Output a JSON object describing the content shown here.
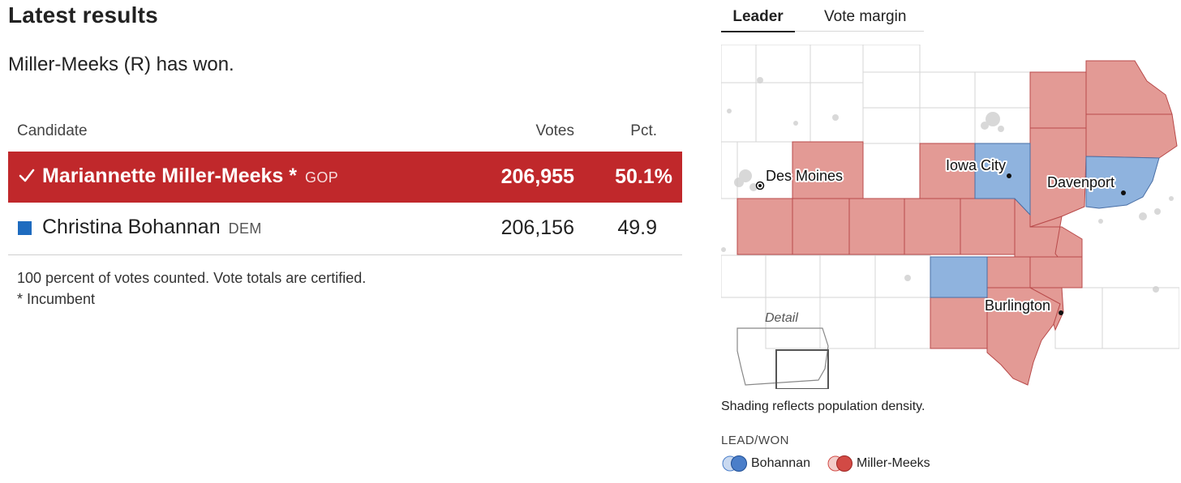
{
  "section_title": "Latest results",
  "status_text": "Miller-Meeks (R) has won.",
  "table": {
    "headers": {
      "candidate": "Candidate",
      "votes": "Votes",
      "pct": "Pct."
    },
    "rows": [
      {
        "name": "Mariannette Miller-Meeks *",
        "party": "GOP",
        "votes": "206,955",
        "pct": "50.1%",
        "winner": true,
        "color": "#c0282b"
      },
      {
        "name": "Christina Bohannan",
        "party": "DEM",
        "votes": "206,156",
        "pct": "49.9",
        "winner": false,
        "color": "#1e6bbf"
      }
    ]
  },
  "notes": {
    "counted": "100 percent of votes counted. Vote totals are certified.",
    "incumbent": "* Incumbent"
  },
  "map_tabs": [
    {
      "label": "Leader",
      "active": true
    },
    {
      "label": "Vote margin",
      "active": false
    }
  ],
  "map": {
    "cities": [
      "Des Moines",
      "Iowa City",
      "Davenport",
      "Burlington"
    ],
    "inset_label": "Detail",
    "colors": {
      "republican": "#e39a95",
      "democrat": "#8fb3de",
      "border": "#b84a4a",
      "county_line": "#d6d6d6"
    }
  },
  "density_note": "Shading reflects population density.",
  "legend": {
    "title": "LEAD/WON",
    "items": [
      {
        "label": "Bohannan",
        "color": "#4a7ec9"
      },
      {
        "label": "Miller-Meeks",
        "color": "#d24a45"
      }
    ]
  }
}
